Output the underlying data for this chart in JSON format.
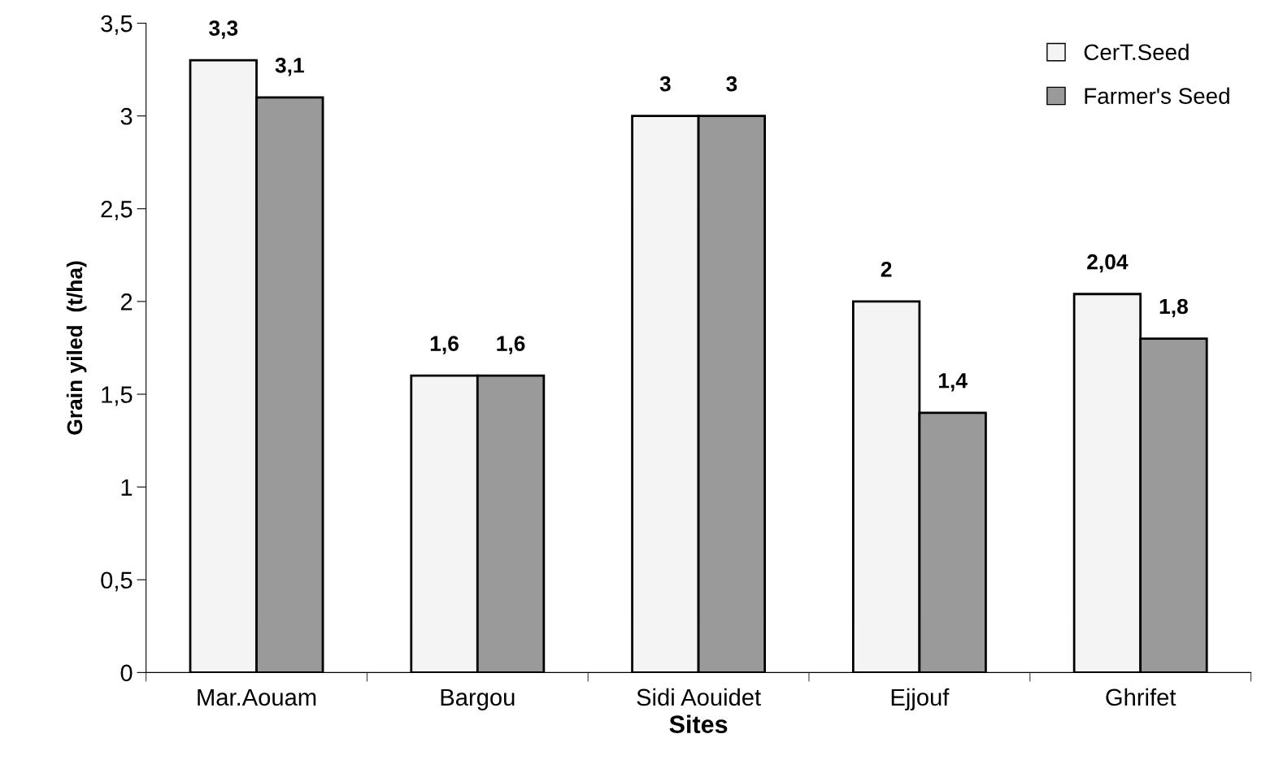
{
  "chart_data": {
    "type": "bar",
    "xlabel": "Sites",
    "ylabel": "Grain yiled  (t/ha)",
    "categories": [
      "Mar.Aouam",
      "Bargou",
      "Sidi Aouidet",
      "Ejjouf",
      "Ghrifet"
    ],
    "series": [
      {
        "name": "CerT.Seed",
        "color": "#f4f4f4",
        "values": [
          3.3,
          1.6,
          3,
          2,
          2.04
        ],
        "value_labels": [
          "3,3",
          "1,6",
          "3",
          "2",
          "2,04"
        ]
      },
      {
        "name": "Farmer's Seed",
        "color": "#9a9a9a",
        "values": [
          3.1,
          1.6,
          3,
          1.4,
          1.8
        ],
        "value_labels": [
          "3,1",
          "1,6",
          "3",
          "1,4",
          "1,8"
        ]
      }
    ],
    "ylim": [
      0,
      3.5
    ],
    "yticks": [
      0,
      {
        "value": 0.5,
        "label": "0,5"
      },
      1,
      {
        "value": 1.5,
        "label": "1,5"
      },
      2,
      {
        "value": 2.5,
        "label": "2,5"
      },
      3,
      {
        "value": 3.5,
        "label": "3,5"
      }
    ],
    "grid": false,
    "legend": "top right"
  }
}
